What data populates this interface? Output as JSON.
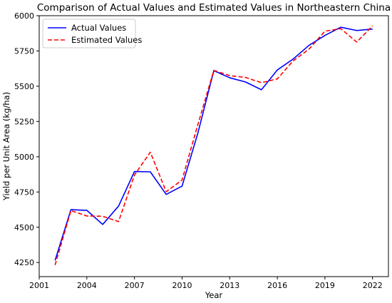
{
  "chart_data": {
    "type": "line",
    "title": "Comparison of Actual Values and Estimated Values in Northeastern China",
    "xlabel": "Year",
    "ylabel": "Yield per Unit Area (kg/ha)",
    "xlim": [
      2001,
      2023
    ],
    "ylim": [
      4150,
      6000
    ],
    "xticks": [
      2001,
      2004,
      2007,
      2010,
      2013,
      2016,
      2019,
      2022
    ],
    "yticks": [
      4250,
      4500,
      4750,
      5000,
      5250,
      5500,
      5750,
      6000
    ],
    "grid": false,
    "legend_position": "top-left",
    "x": [
      2002,
      2003,
      2004,
      2005,
      2006,
      2007,
      2008,
      2009,
      2010,
      2011,
      2012,
      2013,
      2014,
      2015,
      2016,
      2017,
      2018,
      2019,
      2020,
      2021,
      2022
    ],
    "series": [
      {
        "name": "Actual Values",
        "color": "#0000ff",
        "dash": "solid",
        "values": [
          4265,
          4625,
          4620,
          4520,
          4650,
          4895,
          4893,
          4733,
          4792,
          5170,
          5610,
          5560,
          5530,
          5475,
          5615,
          5693,
          5790,
          5860,
          5918,
          5895,
          5905
        ]
      },
      {
        "name": "Estimated Values",
        "color": "#ff0000",
        "dash": "dashed",
        "values": [
          4232,
          4618,
          4580,
          4578,
          4540,
          4870,
          5032,
          4752,
          4835,
          5230,
          5612,
          5575,
          5562,
          5525,
          5552,
          5680,
          5763,
          5890,
          5908,
          5813,
          5928
        ]
      }
    ]
  }
}
